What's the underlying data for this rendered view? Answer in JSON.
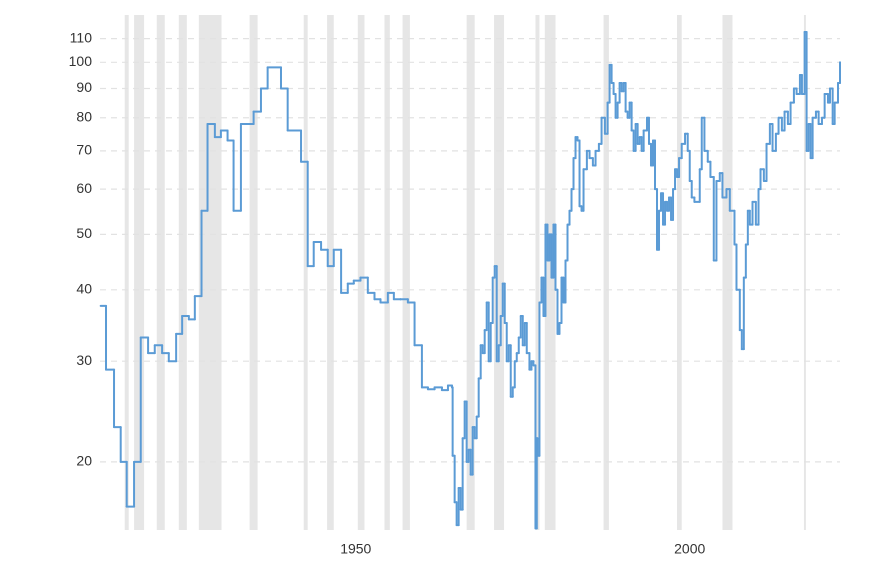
{
  "chart_data": {
    "type": "line",
    "step": true,
    "color": "#5b9bd5",
    "shade_color": "#e6e6e6",
    "grid": true,
    "log_scale_y": true,
    "xlim": [
      1911.7,
      2022.5
    ],
    "ylim": [
      15.2,
      121
    ],
    "xticks": [
      1950,
      2000
    ],
    "yticks": [
      20,
      30,
      40,
      50,
      60,
      70,
      80,
      90,
      100,
      110
    ],
    "shaded_regions": [
      [
        1915.4,
        1916.0
      ],
      [
        1916.8,
        1918.3
      ],
      [
        1920.2,
        1921.4
      ],
      [
        1923.5,
        1924.7
      ],
      [
        1926.5,
        1929.9
      ],
      [
        1934.1,
        1935.3
      ],
      [
        1942.2,
        1942.8
      ],
      [
        1945.7,
        1946.7
      ],
      [
        1950.3,
        1951.3
      ],
      [
        1954.3,
        1955.1
      ],
      [
        1957.0,
        1958.1
      ],
      [
        1966.6,
        1967.8
      ],
      [
        1970.7,
        1972.2
      ],
      [
        1976.9,
        1977.5
      ],
      [
        1978.3,
        1979.9
      ],
      [
        1987.1,
        1987.9
      ],
      [
        1998.1,
        1998.8
      ],
      [
        2004.9,
        2006.4
      ],
      [
        2017.1,
        2017.4
      ]
    ],
    "x": [
      1911.8,
      1912.6,
      1913.8,
      1914.8,
      1915.7,
      1916.8,
      1917.8,
      1918.9,
      1919.9,
      1921.0,
      1922.0,
      1923.1,
      1924.0,
      1925.0,
      1925.9,
      1926.9,
      1927.8,
      1928.9,
      1929.8,
      1930.8,
      1931.7,
      1932.8,
      1933.8,
      1934.7,
      1935.8,
      1936.8,
      1938.8,
      1939.8,
      1941.8,
      1942.8,
      1943.7,
      1944.8,
      1945.8,
      1946.7,
      1947.8,
      1948.8,
      1949.7,
      1950.7,
      1951.8,
      1952.8,
      1953.7,
      1954.8,
      1955.7,
      1956.7,
      1957.8,
      1958.8,
      1959.9,
      1960.8,
      1961.8,
      1962.9,
      1963.8,
      1964.4,
      1964.5,
      1964.8,
      1965.1,
      1965.4,
      1965.7,
      1966.0,
      1966.3,
      1966.6,
      1966.9,
      1967.2,
      1967.5,
      1967.8,
      1968.1,
      1968.4,
      1968.7,
      1969.0,
      1969.3,
      1969.6,
      1969.9,
      1970.2,
      1970.5,
      1970.8,
      1971.1,
      1971.4,
      1971.7,
      1972.0,
      1972.3,
      1972.6,
      1972.9,
      1973.2,
      1973.5,
      1973.8,
      1974.1,
      1974.4,
      1974.7,
      1975.0,
      1975.3,
      1975.6,
      1976.0,
      1976.3,
      1976.6,
      1976.9,
      1977.1,
      1977.2,
      1977.5,
      1977.8,
      1978.1,
      1978.4,
      1978.7,
      1979.0,
      1979.3,
      1979.6,
      1979.9,
      1980.2,
      1980.5,
      1980.8,
      1981.1,
      1981.4,
      1981.7,
      1982.0,
      1982.3,
      1982.6,
      1982.9,
      1983.2,
      1983.5,
      1983.8,
      1984.1,
      1984.6,
      1985.0,
      1985.5,
      1985.9,
      1986.4,
      1986.8,
      1987.3,
      1987.7,
      1988.0,
      1988.3,
      1988.6,
      1988.9,
      1989.2,
      1989.5,
      1989.8,
      1990.1,
      1990.4,
      1990.7,
      1991.0,
      1991.3,
      1991.6,
      1991.9,
      1992.2,
      1992.5,
      1992.8,
      1993.1,
      1993.6,
      1993.9,
      1994.2,
      1994.5,
      1994.8,
      1995.1,
      1995.4,
      1995.7,
      1996.0,
      1996.3,
      1996.6,
      1996.9,
      1997.2,
      1997.5,
      1997.8,
      1998.1,
      1998.4,
      1998.8,
      1999.3,
      1999.7,
      2000.0,
      2000.3,
      2000.7,
      2001.5,
      2001.8,
      2002.2,
      2002.7,
      2003.1,
      2003.6,
      2004.0,
      2004.5,
      2004.9,
      2005.5,
      2006.0,
      2006.7,
      2007.0,
      2007.5,
      2007.8,
      2008.1,
      2008.4,
      2008.7,
      2009.0,
      2009.4,
      2009.9,
      2010.3,
      2010.6,
      2011.1,
      2011.5,
      2012.0,
      2012.4,
      2012.9,
      2013.3,
      2013.8,
      2014.2,
      2014.7,
      2015.1,
      2015.6,
      2016.0,
      2016.5,
      2016.8,
      2017.2,
      2017.5,
      2017.8,
      2018.1,
      2018.4,
      2018.9,
      2019.3,
      2019.8,
      2020.2,
      2020.7,
      2021.0,
      2021.4,
      2021.7,
      2022.2,
      2022.5
    ],
    "values": [
      37.5,
      29,
      23,
      20,
      16.7,
      20,
      33,
      31,
      32,
      31,
      30,
      33.5,
      36,
      35.5,
      39,
      55,
      78,
      74,
      76,
      73,
      55,
      78,
      78,
      82,
      90,
      98,
      90,
      76,
      67,
      44,
      48.5,
      47,
      44,
      47,
      39.5,
      41,
      41.5,
      42,
      39.5,
      38.5,
      38,
      39.5,
      38.5,
      38.5,
      38,
      32,
      27,
      26.8,
      27,
      26.7,
      27.2,
      27,
      20.5,
      17,
      15.5,
      18,
      16.5,
      22,
      25.5,
      20,
      21,
      19,
      23,
      22,
      24,
      28,
      32,
      31,
      34,
      38,
      30,
      35,
      42,
      44,
      30,
      32,
      36,
      41,
      35,
      30,
      32,
      26,
      27,
      30,
      31,
      33,
      36,
      32,
      35,
      31,
      29,
      30,
      29.5,
      15.3,
      22,
      20.5,
      38,
      42,
      36,
      52,
      45,
      50,
      42,
      52,
      40,
      33.5,
      35,
      42,
      38,
      45,
      52,
      55,
      60,
      68,
      74,
      73,
      56,
      55,
      65,
      70,
      68,
      66,
      70,
      72,
      80,
      75,
      85,
      99,
      92,
      88,
      80,
      85,
      92,
      89,
      92,
      82,
      80,
      85,
      76,
      70,
      78,
      72,
      74,
      70,
      76,
      80,
      72,
      66,
      73,
      60,
      47,
      55,
      59,
      52,
      57,
      55,
      58,
      53,
      60,
      65,
      63,
      68,
      72,
      75,
      70,
      62,
      58,
      57,
      65,
      80,
      70,
      67,
      63,
      45,
      62,
      64,
      58,
      60,
      55,
      48,
      40,
      34,
      31.5,
      42,
      48,
      55,
      52,
      57,
      52,
      60,
      65,
      62,
      72,
      78,
      70,
      75,
      80,
      76,
      82,
      78,
      85,
      90,
      88,
      95,
      88,
      113,
      70,
      78,
      68,
      80,
      82,
      78,
      80,
      88,
      85,
      90,
      78,
      85,
      92,
      100
    ]
  }
}
